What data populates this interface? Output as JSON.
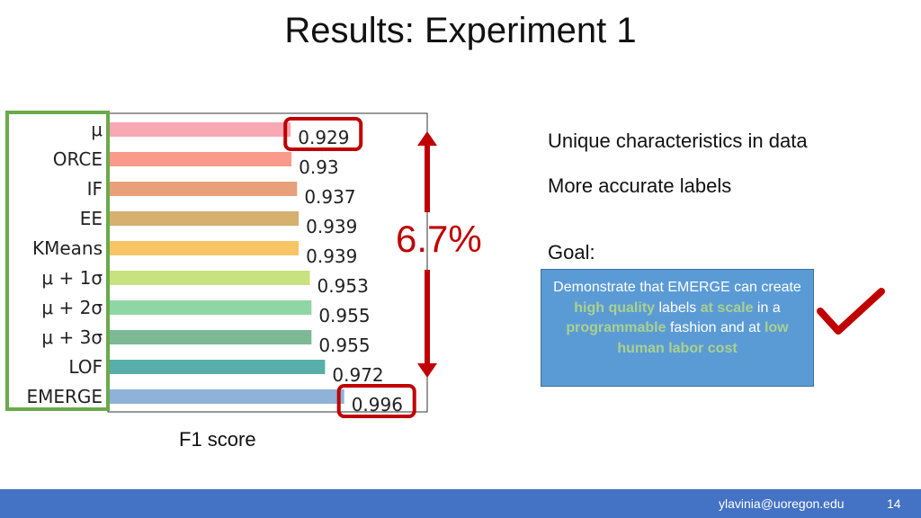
{
  "slide": {
    "title": "Results: Experiment 1",
    "bullets": [
      "Unique characteristics in data",
      "More accurate labels"
    ],
    "goal_label": "Goal:",
    "goal_box": {
      "t1": "Demonstrate that EMERGE can create ",
      "h1": "high quality",
      "t2": " labels ",
      "h2": "at scale",
      "t3": " in a ",
      "h3": "programmable",
      "t4": " fashion and at ",
      "h4": "low human labor cost"
    },
    "improvement": "6.7%",
    "xlabel": "F1 score",
    "footer": {
      "email": "ylavinia@uoregon.edu",
      "page": "14"
    }
  },
  "chart_data": {
    "type": "bar",
    "orientation": "horizontal",
    "categories": [
      "μ",
      "ORCE",
      "IF",
      "EE",
      "KMeans",
      "μ + 1σ",
      "μ + 2σ",
      "μ + 3σ",
      "LOF",
      "EMERGE"
    ],
    "values": [
      0.929,
      0.93,
      0.937,
      0.939,
      0.939,
      0.953,
      0.955,
      0.955,
      0.972,
      0.996
    ],
    "labels": [
      "0.929",
      "0.93",
      "0.937",
      "0.939",
      "0.939",
      "0.953",
      "0.955",
      "0.955",
      "0.972",
      "0.996"
    ],
    "colors": [
      "#f7a8b3",
      "#fa9a8a",
      "#e8a07a",
      "#d5b06e",
      "#f7c565",
      "#c8e280",
      "#8ed6a3",
      "#7cb994",
      "#5aaea9",
      "#8fb2d8"
    ],
    "highlighted": [
      "μ",
      "EMERGE"
    ],
    "xlim": [
      0,
      1
    ],
    "grid": false,
    "xlabel": "F1 score"
  }
}
